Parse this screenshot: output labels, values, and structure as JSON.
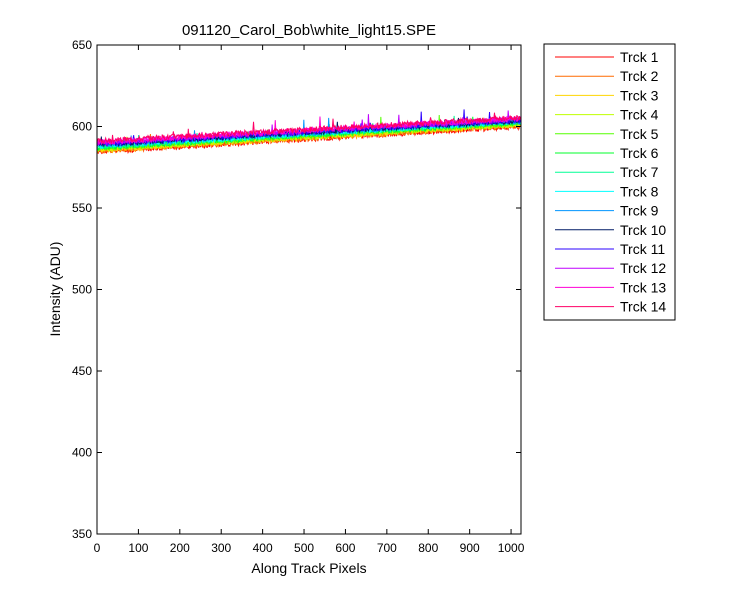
{
  "figure": {
    "background": "#ffffff"
  },
  "chart_data": {
    "type": "line",
    "title": "091120_Carol_Bob\\white_light15.SPE",
    "xlabel": "Along Track Pixels",
    "ylabel": "Intensity (ADU)",
    "xlim": [
      0,
      1024
    ],
    "ylim": [
      350,
      650
    ],
    "x_ticks": [
      0,
      100,
      200,
      300,
      400,
      500,
      600,
      700,
      800,
      900,
      1000
    ],
    "y_ticks": [
      350,
      400,
      450,
      500,
      550,
      600,
      650
    ],
    "grid": false,
    "legend_position": "outside-top-right",
    "x_samples": [
      0,
      64,
      128,
      192,
      256,
      320,
      384,
      448,
      512,
      576,
      640,
      704,
      768,
      832,
      896,
      960,
      1023
    ],
    "series": [
      {
        "name": "Trck 1",
        "color": "#ff0000",
        "start": 584.5,
        "end": 600.0
      },
      {
        "name": "Trck 2",
        "color": "#ff6a00",
        "start": 585.0,
        "end": 600.5
      },
      {
        "name": "Trck 3",
        "color": "#ffd500",
        "start": 585.5,
        "end": 601.0
      },
      {
        "name": "Trck 4",
        "color": "#bfff00",
        "start": 586.0,
        "end": 601.5
      },
      {
        "name": "Trck 5",
        "color": "#55ff00",
        "start": 586.5,
        "end": 602.0
      },
      {
        "name": "Trck 6",
        "color": "#00ff2b",
        "start": 587.0,
        "end": 602.5
      },
      {
        "name": "Trck 7",
        "color": "#00ff95",
        "start": 587.5,
        "end": 603.0
      },
      {
        "name": "Trck 8",
        "color": "#00ffff",
        "start": 588.0,
        "end": 603.0
      },
      {
        "name": "Trck 9",
        "color": "#0095ff",
        "start": 588.5,
        "end": 603.5
      },
      {
        "name": "Trck 10",
        "color": "#001a66",
        "start": 589.0,
        "end": 603.5
      },
      {
        "name": "Trck 11",
        "color": "#2b00ff",
        "start": 589.5,
        "end": 604.0
      },
      {
        "name": "Trck 12",
        "color": "#bf00ff",
        "start": 590.0,
        "end": 604.5
      },
      {
        "name": "Trck 13",
        "color": "#ff00d5",
        "start": 590.5,
        "end": 605.0
      },
      {
        "name": "Trck 14",
        "color": "#ff0066",
        "start": 591.0,
        "end": 605.5
      }
    ]
  }
}
